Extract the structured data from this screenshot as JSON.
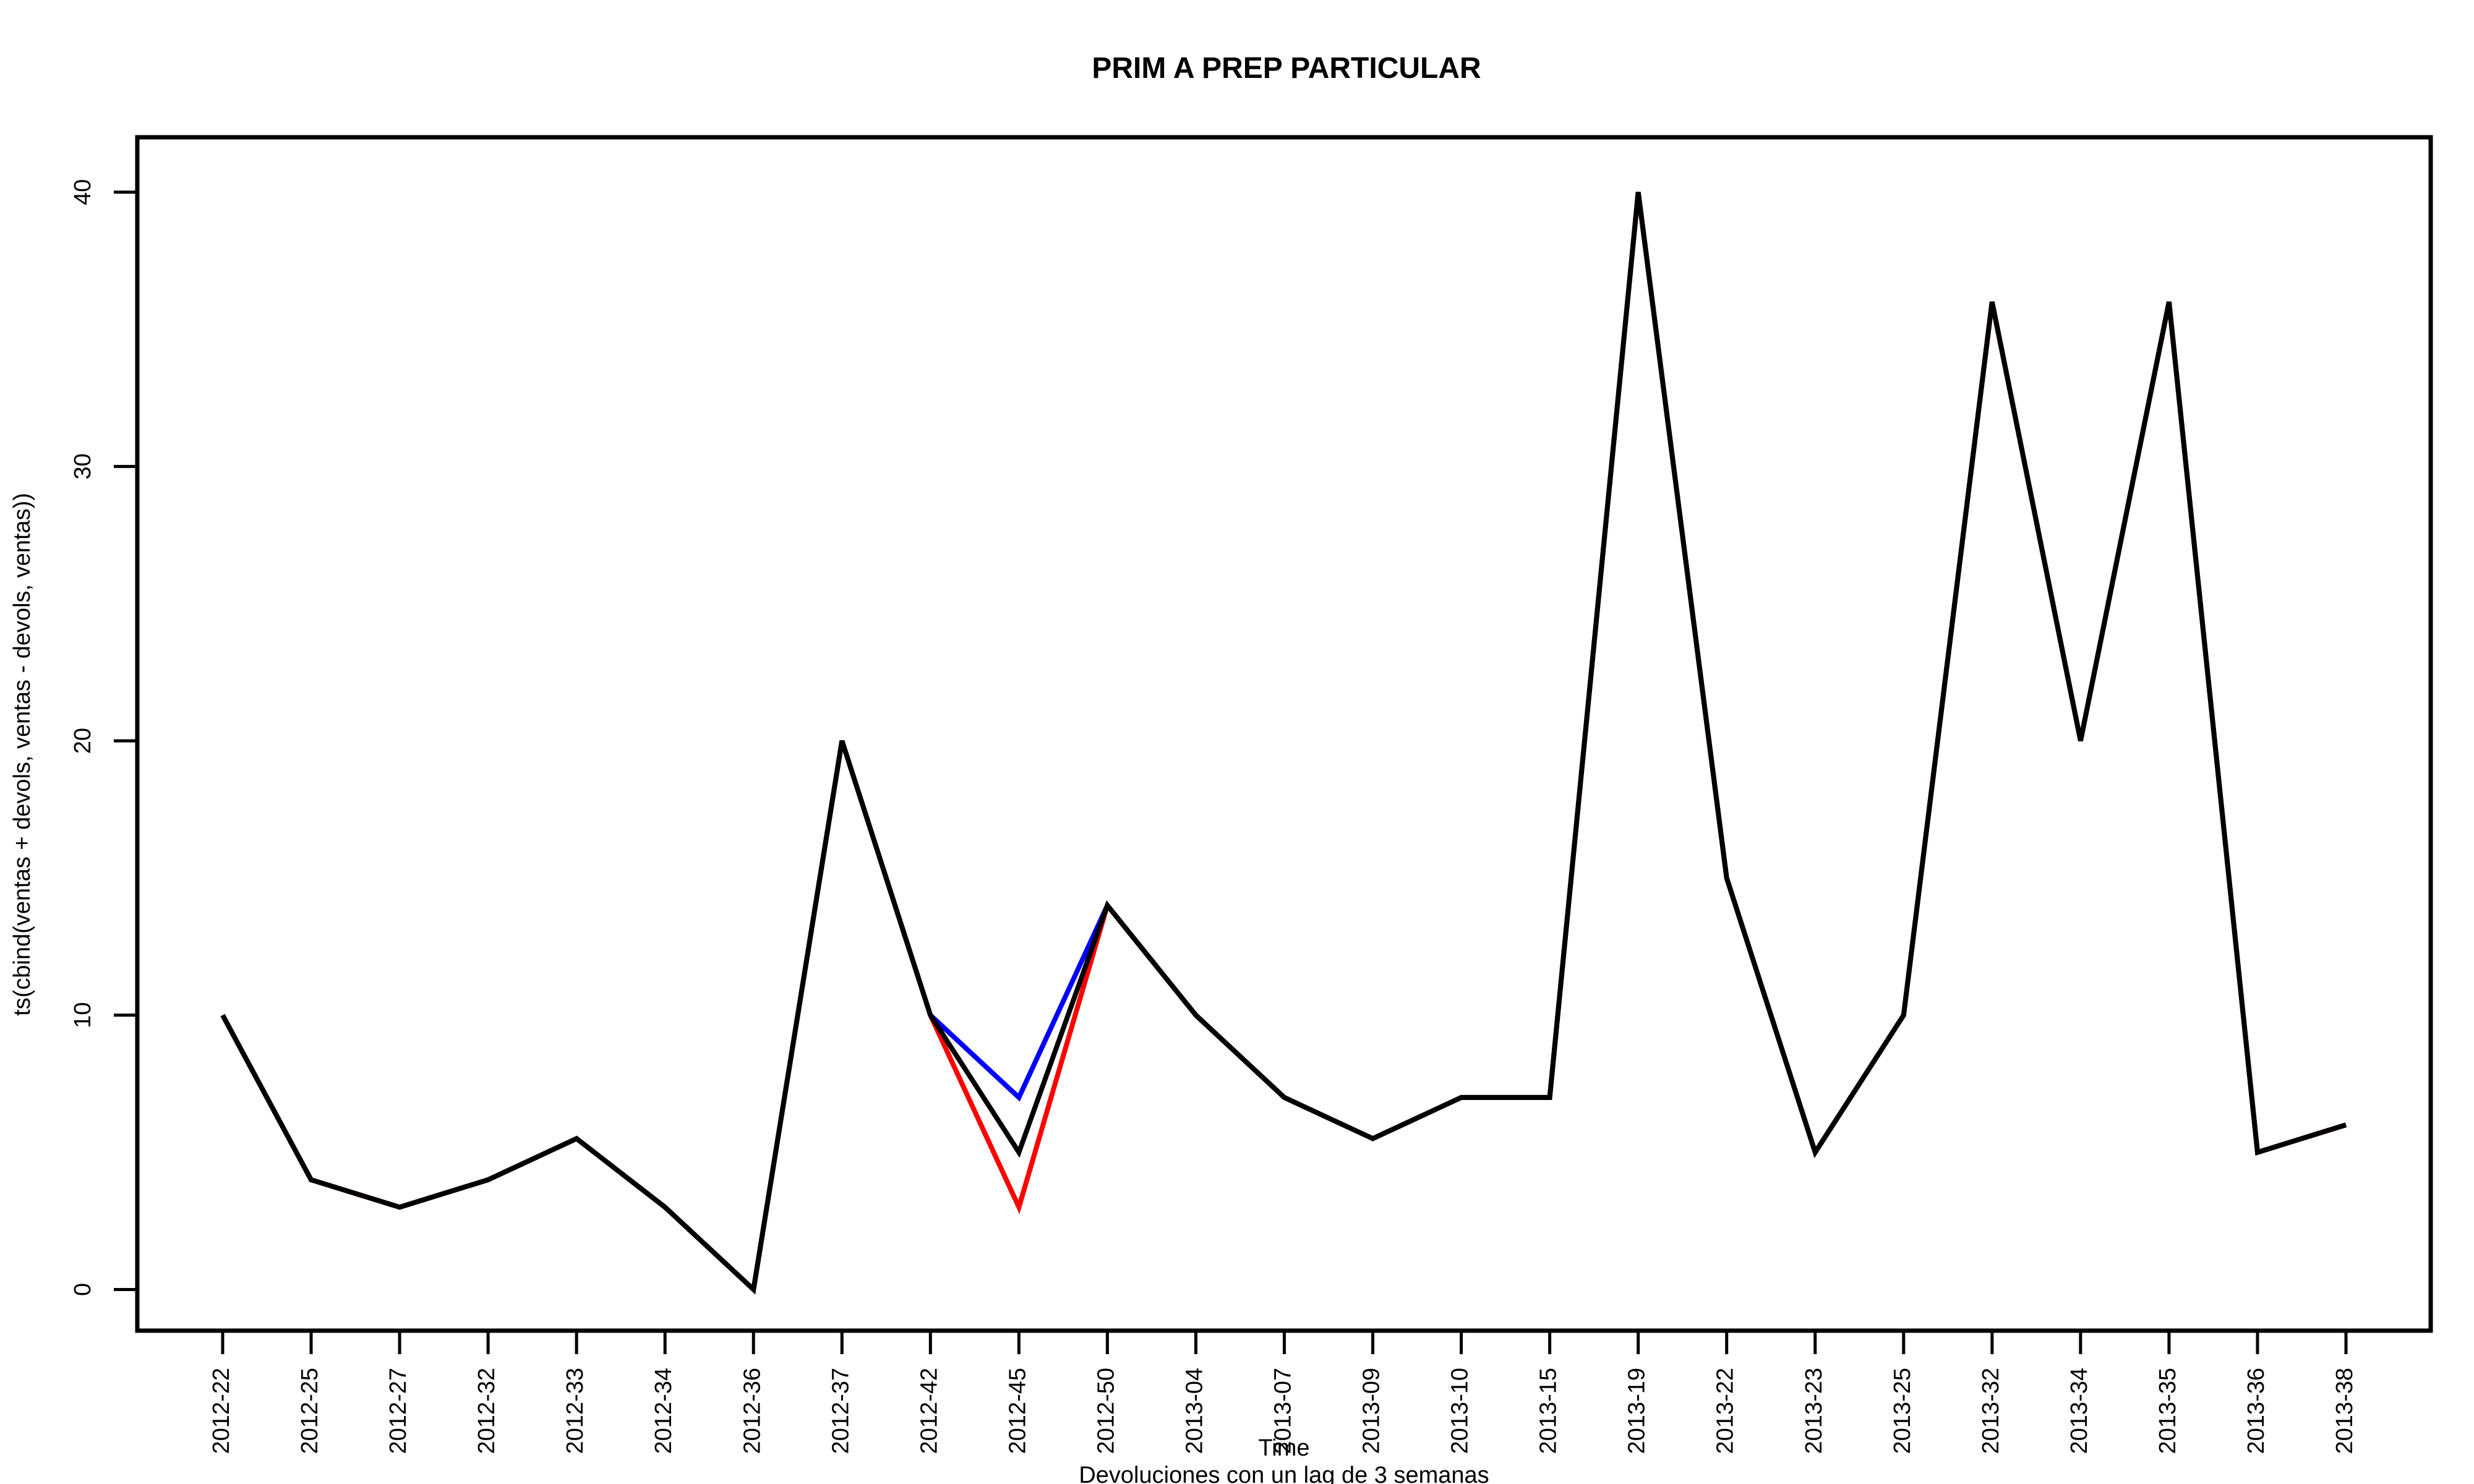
{
  "chart_data": {
    "type": "line",
    "title": "PRIM A PREP PARTICULAR",
    "xlabel": "Time",
    "sublabel": "Devoluciones con un lag de 3 semanas",
    "ylabel": "ts(cbind(ventas + devols, ventas - devols, ventas))",
    "categories": [
      "2012-22",
      "2012-25",
      "2012-27",
      "2012-32",
      "2012-33",
      "2012-34",
      "2012-36",
      "2012-37",
      "2012-42",
      "2012-45",
      "2012-50",
      "2013-04",
      "2013-07",
      "2013-09",
      "2013-10",
      "2013-15",
      "2013-19",
      "2013-22",
      "2013-23",
      "2013-25",
      "2013-32",
      "2013-34",
      "2013-35",
      "2013-36",
      "2013-38"
    ],
    "ylim": [
      -1.5,
      42
    ],
    "yticks": [
      0,
      10,
      20,
      30,
      40
    ],
    "ytick_labels": [
      "0",
      "10",
      "20",
      "30",
      "40"
    ],
    "grid": false,
    "series": [
      {
        "color": "#0000ff",
        "values": [
          10,
          4,
          3,
          4,
          5.5,
          3,
          0,
          20,
          10,
          7,
          14,
          10,
          7,
          5.5,
          7,
          7,
          40,
          15,
          5,
          10,
          36,
          20,
          36,
          5,
          6
        ]
      },
      {
        "color": "#ff0000",
        "values": [
          10,
          4,
          3,
          4,
          5.5,
          3,
          0,
          20,
          10,
          3,
          14,
          10,
          7,
          5.5,
          7,
          7,
          40,
          15,
          5,
          10,
          36,
          20,
          36,
          5,
          6
        ]
      },
      {
        "color": "#000000",
        "values": [
          10,
          4,
          3,
          4,
          5.5,
          3,
          0,
          20,
          10,
          5,
          14,
          10,
          7,
          5.5,
          7,
          7,
          40,
          15,
          5,
          10,
          36,
          20,
          36,
          5,
          6
        ]
      }
    ]
  }
}
